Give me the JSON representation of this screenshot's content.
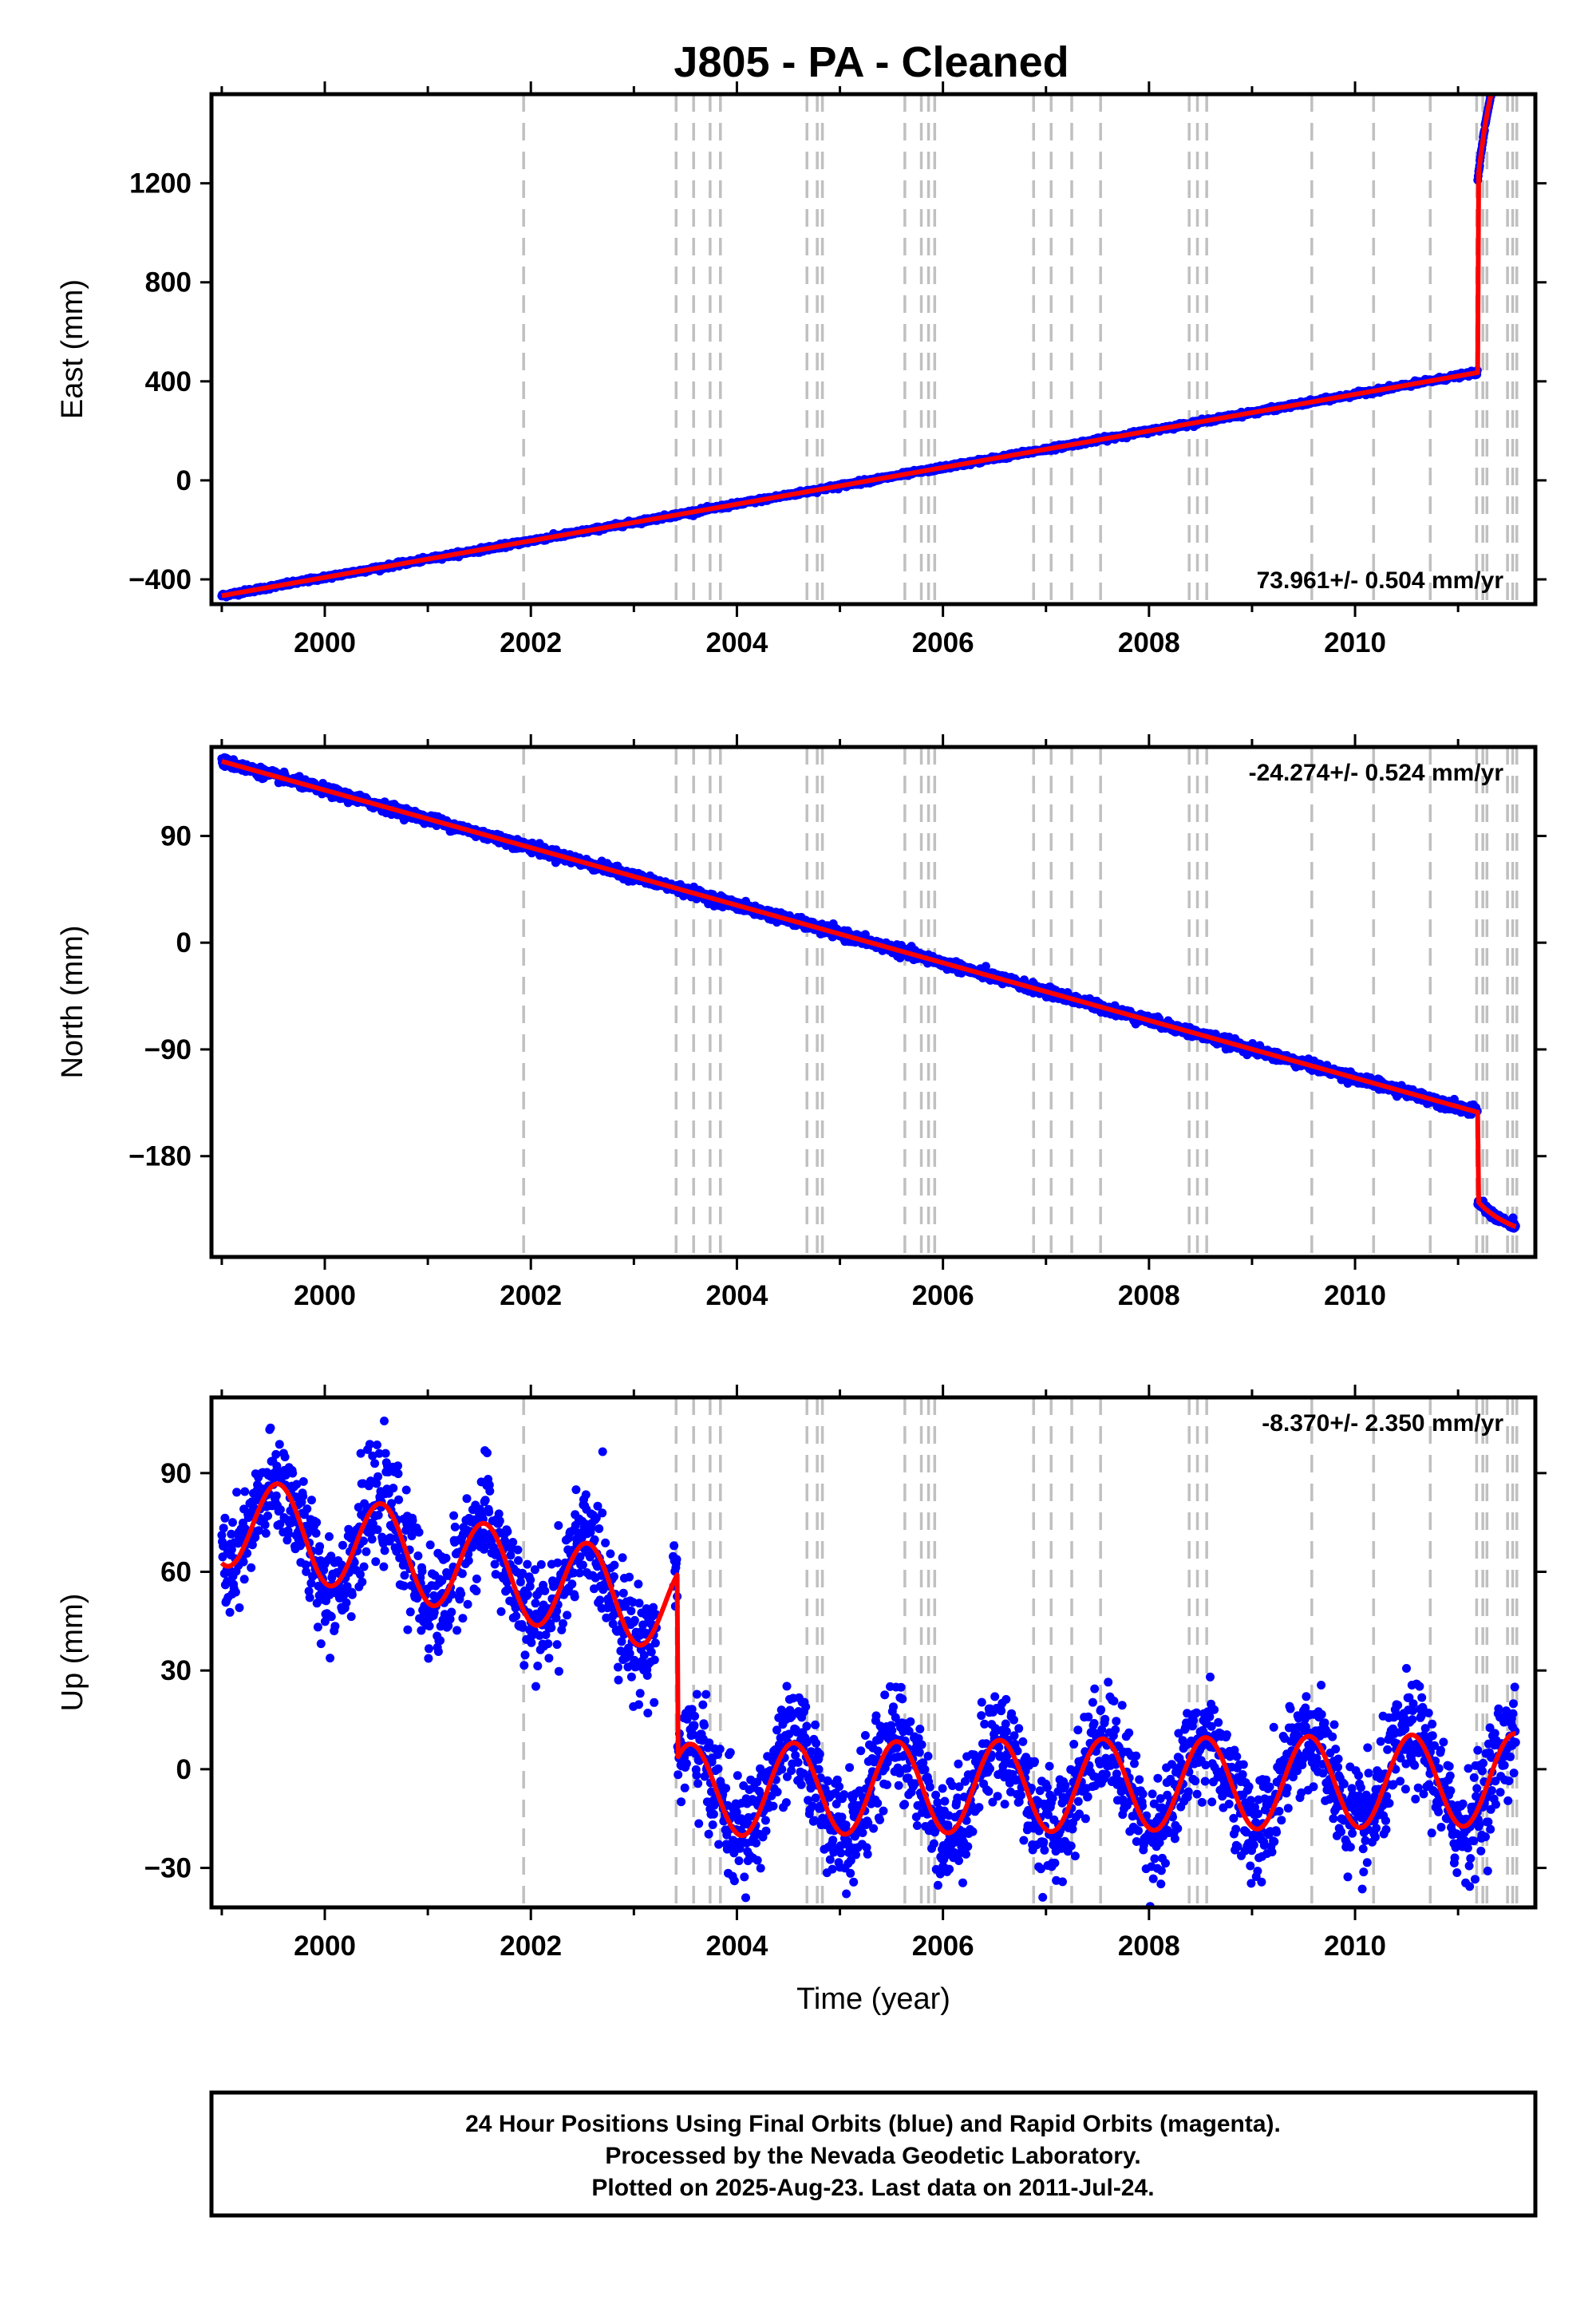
{
  "title": "J805  - PA - Cleaned",
  "colors": {
    "points": "#0000ff",
    "model": "#ff0000",
    "breaks": "#c0c0c0",
    "frame": "#000000"
  },
  "footer": {
    "line1": "24 Hour Positions Using Final Orbits (blue) and Rapid Orbits (magenta).",
    "line2": "Processed by the Nevada Geodetic Laboratory.",
    "line3": "Plotted on 2025-Aug-23. Last data on 2011-Jul-24."
  },
  "chart_data": [
    {
      "type": "scatter",
      "id": "east",
      "ylabel": "East (mm)",
      "xlabel": "",
      "rate_text": "73.961+/- 0.504 mm/yr",
      "xlim": [
        1998.9,
        2011.75
      ],
      "ylim": [
        -500,
        1560
      ],
      "yticks": [
        -400,
        0,
        400,
        800,
        1200
      ],
      "ytick_labels": [
        "−400",
        "0",
        "400",
        "800",
        "1200"
      ],
      "xticks": [
        2000,
        2002,
        2004,
        2006,
        2008,
        2010
      ],
      "xtick_labels": [
        "2000",
        "2002",
        "2004",
        "2006",
        "2008",
        "2010"
      ],
      "data_range": [
        1999.0,
        2011.56
      ],
      "model": {
        "rate": 73.961,
        "offset": 0,
        "ref_year": 2005.3,
        "steps": [
          {
            "year": 2011.19,
            "size": 770,
            "decay": 670,
            "tau": 0.18
          }
        ]
      },
      "scatter": 4
    },
    {
      "type": "scatter",
      "id": "north",
      "ylabel": "North (mm)",
      "xlabel": "",
      "rate_text": "-24.274+/- 0.524 mm/yr",
      "xlim": [
        1998.9,
        2011.75
      ],
      "ylim": [
        -265,
        165
      ],
      "yticks": [
        -180,
        -90,
        0,
        90
      ],
      "ytick_labels": [
        "−180",
        "−90",
        "0",
        "90"
      ],
      "xticks": [
        2000,
        2002,
        2004,
        2006,
        2008,
        2010
      ],
      "xtick_labels": [
        "2000",
        "2002",
        "2004",
        "2006",
        "2008",
        "2010"
      ],
      "data_range": [
        1999.0,
        2011.56
      ],
      "model": {
        "rate": -24.274,
        "offset": 0,
        "ref_year": 2005.3,
        "steps": [
          {
            "year": 2011.19,
            "size": -75,
            "decay": -15,
            "tau": 0.2
          }
        ]
      },
      "scatter": 2
    },
    {
      "type": "scatter",
      "id": "up",
      "ylabel": "Up (mm)",
      "xlabel": "Time (year)",
      "rate_text": "-8.370+/- 2.350 mm/yr",
      "xlim": [
        1998.9,
        2011.75
      ],
      "ylim": [
        -42,
        113
      ],
      "yticks": [
        -30,
        0,
        30,
        60,
        90
      ],
      "ytick_labels": [
        "−30",
        "0",
        "30",
        "60",
        "90"
      ],
      "xticks": [
        2000,
        2002,
        2004,
        2006,
        2008,
        2010
      ],
      "xtick_labels": [
        "2000",
        "2002",
        "2004",
        "2006",
        "2008",
        "2010"
      ],
      "data_range": [
        1999.0,
        2011.56
      ],
      "gap": [
        2003.22,
        2003.38
      ],
      "model": {
        "seasonal_amp": 14,
        "early_mean": 64,
        "early_rate": -6,
        "late_mean": -5,
        "late_rate": 0.4,
        "break_year": 2003.42
      },
      "scatter": 8
    }
  ],
  "breaks": [
    2001.93,
    2003.41,
    2003.58,
    2003.74,
    2003.84,
    2004.68,
    2004.78,
    2004.83,
    2005.63,
    2005.79,
    2005.86,
    2005.92,
    2006.88,
    2007.05,
    2007.25,
    2007.53,
    2008.39,
    2008.47,
    2008.56,
    2009.58,
    2010.18,
    2010.73,
    2011.18,
    2011.24,
    2011.28,
    2011.48,
    2011.53,
    2011.57
  ]
}
